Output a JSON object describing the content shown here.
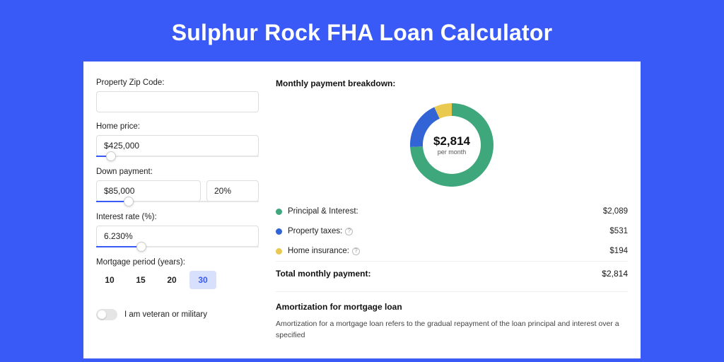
{
  "title": "Sulphur Rock FHA Loan Calculator",
  "colors": {
    "brand": "#3a5af7",
    "series_pi": "#3fa77c",
    "series_tax": "#3264d6",
    "series_ins": "#e9c94f",
    "card_bg": "#ffffff"
  },
  "form": {
    "zip": {
      "label": "Property Zip Code:",
      "value": ""
    },
    "home_price": {
      "label": "Home price:",
      "value": "$425,000",
      "slider_pct": 9
    },
    "down_payment": {
      "label": "Down payment:",
      "amount": "$85,000",
      "pct": "20%",
      "slider_pct": 20
    },
    "interest_rate": {
      "label": "Interest rate (%):",
      "value": "6.230%",
      "slider_pct": 28
    },
    "mortgage_period": {
      "label": "Mortgage period (years):",
      "options": [
        "10",
        "15",
        "20",
        "30"
      ],
      "selected": "30"
    },
    "veteran": {
      "label": "I am veteran or military",
      "checked": false
    }
  },
  "breakdown": {
    "title": "Monthly payment breakdown:",
    "center_value": "$2,814",
    "center_label": "per month",
    "donut": {
      "segments": [
        {
          "key": "pi",
          "pct": 74.2,
          "color": "#3fa77c"
        },
        {
          "key": "tax",
          "pct": 18.9,
          "color": "#3264d6"
        },
        {
          "key": "ins",
          "pct": 6.9,
          "color": "#e9c94f"
        }
      ],
      "stroke_width": 18
    },
    "rows": [
      {
        "label": "Principal & Interest:",
        "value": "$2,089",
        "color": "#3fa77c",
        "info": false
      },
      {
        "label": "Property taxes:",
        "value": "$531",
        "color": "#3264d6",
        "info": true
      },
      {
        "label": "Home insurance:",
        "value": "$194",
        "color": "#e9c94f",
        "info": true
      }
    ],
    "total": {
      "label": "Total monthly payment:",
      "value": "$2,814"
    }
  },
  "amortization": {
    "title": "Amortization for mortgage loan",
    "text": "Amortization for a mortgage loan refers to the gradual repayment of the loan principal and interest over a specified"
  }
}
